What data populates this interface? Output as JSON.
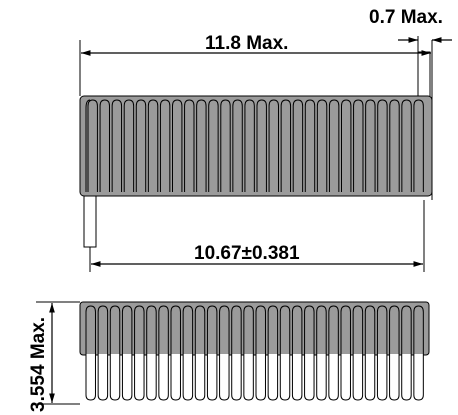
{
  "dimensions": {
    "lead_width": "0.7 Max.",
    "body_length": "11.8 Max.",
    "coil_span": "10.67±0.381",
    "height": "3.554 Max."
  },
  "colors": {
    "body": "#9b9b9b",
    "line": "#000000",
    "background": "#ffffff"
  },
  "coil": {
    "turns_top_view": 28,
    "turns_side_view": 28
  }
}
